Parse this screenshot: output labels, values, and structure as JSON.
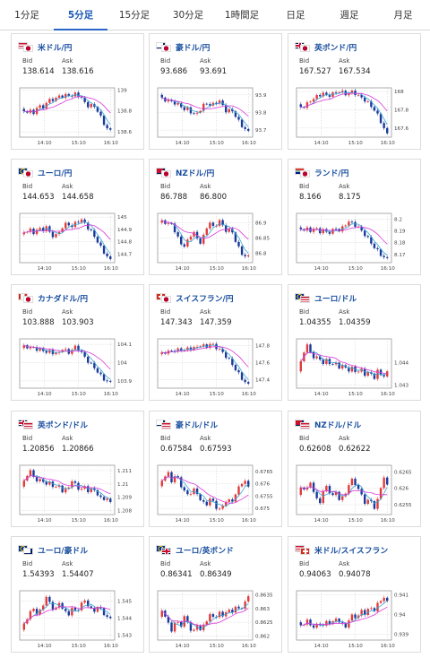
{
  "tabs": [
    {
      "label": "1分足",
      "active": false
    },
    {
      "label": "5分足",
      "active": true
    },
    {
      "label": "15分足",
      "active": false
    },
    {
      "label": "30分足",
      "active": false
    },
    {
      "label": "1時間足",
      "active": false
    },
    {
      "label": "日足",
      "active": false
    },
    {
      "label": "週足",
      "active": false
    },
    {
      "label": "月足",
      "active": false
    }
  ],
  "labels": {
    "bid": "Bid",
    "ask": "Ask"
  },
  "colors": {
    "up": "#e23b3b",
    "down": "#1a3a9a",
    "ma_short": "#3aa6d6",
    "ma_long": "#d93ad9",
    "title": "#1a4fa0",
    "accent": "#2a66c8"
  },
  "cards": [
    {
      "pair": "米ドル/円",
      "flag": "us-jp-flag",
      "bid": "138.614",
      "ask": "138.616",
      "chart_data": {
        "type": "candlestick",
        "x_ticks": [
          "14:10",
          "15:10",
          "16:10"
        ],
        "y_ticks": [
          "139",
          "138.8",
          "138.6"
        ],
        "y_tick_values": [
          139,
          138.8,
          138.6
        ],
        "ylim": [
          138.55,
          139.02
        ],
        "path": [
          138.82,
          138.79,
          138.8,
          138.78,
          138.85,
          138.83,
          138.87,
          138.92,
          138.9,
          138.95,
          138.93,
          138.96,
          138.94,
          138.97,
          138.93,
          138.88,
          138.84,
          138.86,
          138.8,
          138.72,
          138.64,
          138.61
        ]
      }
    },
    {
      "pair": "豪ドル/円",
      "flag": "au-jp-flag",
      "bid": "93.686",
      "ask": "93.691",
      "chart_data": {
        "type": "candlestick",
        "x_ticks": [
          "14:10",
          "15:10",
          "16:10"
        ],
        "y_ticks": [
          "93.9",
          "93.8",
          "93.7"
        ],
        "y_tick_values": [
          93.9,
          93.8,
          93.7
        ],
        "ylim": [
          93.66,
          93.94
        ],
        "path": [
          93.9,
          93.88,
          93.86,
          93.87,
          93.84,
          93.85,
          93.81,
          93.83,
          93.78,
          93.8,
          93.82,
          93.86,
          93.84,
          93.85,
          93.87,
          93.84,
          93.8,
          93.82,
          93.78,
          93.74,
          93.71,
          93.69
        ]
      }
    },
    {
      "pair": "英ポンド/円",
      "flag": "gb-jp-flag",
      "bid": "167.527",
      "ask": "167.534",
      "chart_data": {
        "type": "candlestick",
        "x_ticks": [
          "14:10",
          "15:10",
          "16:10"
        ],
        "y_ticks": [
          "168",
          "167.8",
          "167.6"
        ],
        "y_tick_values": [
          168,
          167.8,
          167.6
        ],
        "ylim": [
          167.5,
          168.04
        ],
        "path": [
          167.86,
          167.82,
          167.85,
          167.9,
          167.93,
          167.96,
          167.98,
          167.95,
          167.97,
          167.99,
          168.01,
          167.97,
          167.98,
          168.0,
          167.96,
          167.93,
          167.9,
          167.85,
          167.8,
          167.72,
          167.62,
          167.53
        ]
      }
    },
    {
      "pair": "ユーロ/円",
      "flag": "eu-jp-flag",
      "bid": "144.653",
      "ask": "144.658",
      "chart_data": {
        "type": "candlestick",
        "x_ticks": [
          "14:10",
          "15:10",
          "16:10"
        ],
        "y_ticks": [
          "145",
          "144.9",
          "144.8",
          "144.7"
        ],
        "y_tick_values": [
          145,
          144.9,
          144.8,
          144.7
        ],
        "ylim": [
          144.63,
          145.03
        ],
        "path": [
          144.86,
          144.88,
          144.9,
          144.87,
          144.91,
          144.89,
          144.92,
          144.86,
          144.84,
          144.88,
          144.93,
          144.95,
          144.92,
          144.96,
          144.98,
          144.95,
          144.9,
          144.86,
          144.8,
          144.74,
          144.69,
          144.65
        ]
      }
    },
    {
      "pair": "NZドル/円",
      "flag": "nz-jp-flag",
      "bid": "86.788",
      "ask": "86.800",
      "chart_data": {
        "type": "candlestick",
        "x_ticks": [
          "14:10",
          "15:10",
          "16:10"
        ],
        "y_ticks": [
          "86.9",
          "86.85",
          "86.8"
        ],
        "y_tick_values": [
          86.9,
          86.85,
          86.8
        ],
        "ylim": [
          86.77,
          86.93
        ],
        "path": [
          86.9,
          86.91,
          86.89,
          86.9,
          86.86,
          86.84,
          86.82,
          86.85,
          86.87,
          86.85,
          86.83,
          86.88,
          86.9,
          86.88,
          86.91,
          86.89,
          86.87,
          86.88,
          86.84,
          86.81,
          86.79,
          86.79
        ]
      }
    },
    {
      "pair": "ランド/円",
      "flag": "za-jp-flag",
      "bid": "8.166",
      "ask": "8.175",
      "chart_data": {
        "type": "candlestick",
        "x_ticks": [
          "14:10",
          "15:10",
          "16:10"
        ],
        "y_ticks": [
          "8.2",
          "8.19",
          "8.18",
          "8.17"
        ],
        "y_tick_values": [
          8.2,
          8.19,
          8.18,
          8.17
        ],
        "ylim": [
          8.163,
          8.205
        ],
        "path": [
          8.193,
          8.191,
          8.192,
          8.19,
          8.193,
          8.189,
          8.191,
          8.188,
          8.19,
          8.192,
          8.19,
          8.195,
          8.198,
          8.196,
          8.194,
          8.19,
          8.186,
          8.181,
          8.176,
          8.172,
          8.168,
          8.166
        ]
      }
    },
    {
      "pair": "カナダドル/円",
      "flag": "ca-jp-flag",
      "bid": "103.888",
      "ask": "103.903",
      "chart_data": {
        "type": "candlestick",
        "x_ticks": [
          "14:10",
          "15:10",
          "16:10"
        ],
        "y_ticks": [
          "104.1",
          "104",
          "103.9"
        ],
        "y_tick_values": [
          104.1,
          104,
          103.9
        ],
        "ylim": [
          103.86,
          104.13
        ],
        "path": [
          104.08,
          104.1,
          104.07,
          104.09,
          104.06,
          104.08,
          104.05,
          104.07,
          104.04,
          104.06,
          104.08,
          104.05,
          104.07,
          104.09,
          104.06,
          104.03,
          104.0,
          103.98,
          103.95,
          103.92,
          103.9,
          103.89
        ]
      }
    },
    {
      "pair": "スイスフラン/円",
      "flag": "ch-jp-flag",
      "bid": "147.343",
      "ask": "147.359",
      "chart_data": {
        "type": "candlestick",
        "x_ticks": [
          "14:10",
          "15:10",
          "16:10"
        ],
        "y_ticks": [
          "147.8",
          "147.6",
          "147.4"
        ],
        "y_tick_values": [
          147.8,
          147.6,
          147.4
        ],
        "ylim": [
          147.3,
          147.88
        ],
        "path": [
          147.7,
          147.73,
          147.71,
          147.75,
          147.73,
          147.77,
          147.74,
          147.78,
          147.76,
          147.79,
          147.81,
          147.78,
          147.82,
          147.8,
          147.76,
          147.72,
          147.66,
          147.6,
          147.52,
          147.45,
          147.38,
          147.34
        ]
      }
    },
    {
      "pair": "ユーロ/ドル",
      "flag": "eu-us-flag",
      "bid": "1.04355",
      "ask": "1.04359",
      "chart_data": {
        "type": "candlestick",
        "x_ticks": [
          "14:10",
          "15:10",
          "16:10"
        ],
        "y_ticks": [
          "1.044",
          "1.043"
        ],
        "y_tick_values": [
          1.044,
          1.043
        ],
        "ylim": [
          1.04285,
          1.04505
        ],
        "path": [
          1.0436,
          1.0442,
          1.0448,
          1.0445,
          1.0441,
          1.0443,
          1.0439,
          1.0442,
          1.0438,
          1.044,
          1.0437,
          1.0439,
          1.0436,
          1.0438,
          1.0435,
          1.0437,
          1.0434,
          1.0436,
          1.0433,
          1.0437,
          1.0433,
          1.04355
        ]
      }
    },
    {
      "pair": "英ポンド/ドル",
      "flag": "gb-us-flag",
      "bid": "1.20856",
      "ask": "1.20866",
      "chart_data": {
        "type": "candlestick",
        "x_ticks": [
          "14:10",
          "15:10",
          "16:10"
        ],
        "y_ticks": [
          "1.211",
          "1.21",
          "1.209",
          "1.208"
        ],
        "y_tick_values": [
          1.211,
          1.21,
          1.209,
          1.208
        ],
        "ylim": [
          1.2077,
          1.2114
        ],
        "path": [
          1.2098,
          1.2104,
          1.211,
          1.2106,
          1.2101,
          1.2104,
          1.2099,
          1.2102,
          1.2096,
          1.2099,
          1.2093,
          1.2097,
          1.2102,
          1.2099,
          1.2095,
          1.2098,
          1.2094,
          1.2097,
          1.2092,
          1.2088,
          1.209,
          1.20856
        ]
      }
    },
    {
      "pair": "豪ドル/ドル",
      "flag": "au-us-flag",
      "bid": "0.67584",
      "ask": "0.67593",
      "chart_data": {
        "type": "candlestick",
        "x_ticks": [
          "14:10",
          "15:10",
          "16:10"
        ],
        "y_ticks": [
          "0.6765",
          "0.676",
          "0.6755",
          "0.675"
        ],
        "y_tick_values": [
          0.6765,
          0.676,
          0.6755,
          0.675
        ],
        "ylim": [
          0.67475,
          0.67675
        ],
        "path": [
          0.6759,
          0.6762,
          0.6765,
          0.6761,
          0.6764,
          0.676,
          0.6757,
          0.6755,
          0.6758,
          0.6756,
          0.6753,
          0.6751,
          0.6754,
          0.6752,
          0.6749,
          0.6751,
          0.6754,
          0.6752,
          0.6756,
          0.6759,
          0.6762,
          0.67584
        ]
      }
    },
    {
      "pair": "NZドル/ドル",
      "flag": "nz-us-flag",
      "bid": "0.62608",
      "ask": "0.62622",
      "chart_data": {
        "type": "candlestick",
        "x_ticks": [
          "14:10",
          "15:10",
          "16:10"
        ],
        "y_ticks": [
          "0.6265",
          "0.626",
          "0.6255"
        ],
        "y_tick_values": [
          0.6265,
          0.626,
          0.6255
        ],
        "ylim": [
          0.6252,
          0.6267
        ],
        "path": [
          0.6258,
          0.6261,
          0.6259,
          0.6262,
          0.6258,
          0.6255,
          0.6259,
          0.6261,
          0.6257,
          0.6259,
          0.6256,
          0.6258,
          0.6261,
          0.6263,
          0.626,
          0.6258,
          0.6255,
          0.6257,
          0.6254,
          0.6257,
          0.6264,
          0.62608
        ]
      }
    },
    {
      "pair": "ユーロ/豪ドル",
      "flag": "eu-au-flag",
      "bid": "1.54393",
      "ask": "1.54407",
      "chart_data": {
        "type": "candlestick",
        "x_ticks": [
          "14:10",
          "15:10",
          "16:10"
        ],
        "y_ticks": [
          "1.545",
          "1.544",
          "1.543"
        ],
        "y_tick_values": [
          1.545,
          1.544,
          1.543
        ],
        "ylim": [
          1.5427,
          1.5456
        ],
        "path": [
          1.5433,
          1.5438,
          1.5442,
          1.5446,
          1.5441,
          1.5447,
          1.5452,
          1.5448,
          1.5444,
          1.5449,
          1.5445,
          1.5441,
          1.5446,
          1.5443,
          1.5448,
          1.545,
          1.5447,
          1.5443,
          1.5447,
          1.5444,
          1.5441,
          1.54393
        ]
      }
    },
    {
      "pair": "ユーロ/英ポンド",
      "flag": "eu-gb-flag",
      "bid": "0.86341",
      "ask": "0.86349",
      "chart_data": {
        "type": "candlestick",
        "x_ticks": [
          "14:10",
          "15:10",
          "16:10"
        ],
        "y_ticks": [
          "0.8635",
          "0.863",
          "0.8625",
          "0.862"
        ],
        "y_tick_values": [
          0.8635,
          0.863,
          0.8625,
          0.862
        ],
        "ylim": [
          0.86185,
          0.86365
        ],
        "path": [
          0.8627,
          0.863,
          0.8625,
          0.8622,
          0.8626,
          0.8623,
          0.8627,
          0.8624,
          0.8621,
          0.8624,
          0.8622,
          0.8625,
          0.8628,
          0.8626,
          0.8629,
          0.8627,
          0.863,
          0.8628,
          0.8631,
          0.8629,
          0.8632,
          0.86341
        ]
      }
    },
    {
      "pair": "米ドル/スイスフラン",
      "flag": "us-ch-flag",
      "bid": "0.94063",
      "ask": "0.94078",
      "chart_data": {
        "type": "candlestick",
        "x_ticks": [
          "14:10",
          "15:10",
          "16:10"
        ],
        "y_ticks": [
          "0.941",
          "0.94",
          "0.939"
        ],
        "y_tick_values": [
          0.941,
          0.94,
          0.939
        ],
        "ylim": [
          0.9387,
          0.9412
        ],
        "path": [
          0.9396,
          0.9394,
          0.9397,
          0.9395,
          0.9393,
          0.9396,
          0.9394,
          0.9397,
          0.9395,
          0.9398,
          0.9396,
          0.9393,
          0.9397,
          0.94,
          0.9398,
          0.9402,
          0.94,
          0.9404,
          0.9402,
          0.9406,
          0.9409,
          0.94063
        ]
      }
    }
  ]
}
